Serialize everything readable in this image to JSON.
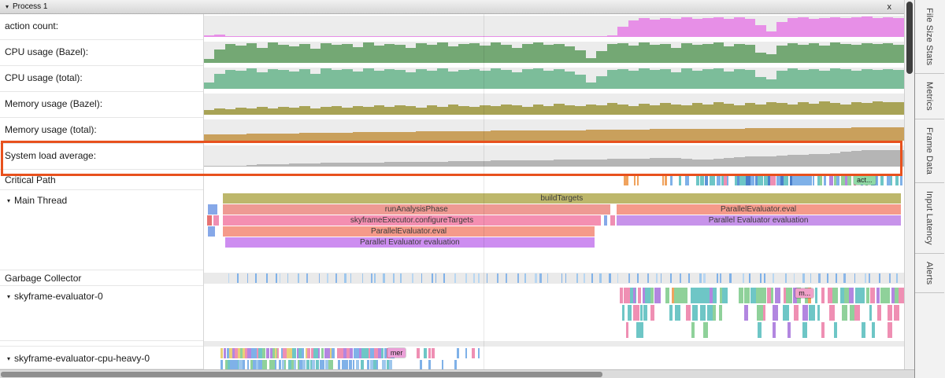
{
  "icons": {
    "collapse_arrow": "▾",
    "thread_arrow": "▾",
    "close": "x"
  },
  "window": {
    "title": "Process 1",
    "right_tabs": [
      "File Size Stats",
      "Metrics",
      "Frame Data",
      "Input Latency",
      "Alerts"
    ]
  },
  "highlight": {
    "color": "#e8511d",
    "target": "System load average:"
  },
  "gridlines": [
    0.4
  ],
  "tracks": {
    "counters": [
      {
        "label": "action count:",
        "color": "#e78fe7",
        "values": [
          0.06,
          0.1,
          0.04,
          0.02,
          0.02,
          0.03,
          0.02,
          0.02,
          0.03,
          0.02,
          0.02,
          0.03,
          0.02,
          0.02,
          0.04,
          0.02,
          0.03,
          0.02,
          0.02,
          0.03,
          0.02,
          0.02,
          0.03,
          0.04,
          0.02,
          0.02,
          0.03,
          0.02,
          0.02,
          0.03,
          0.02,
          0.04,
          0.02,
          0.03,
          0.02,
          0.02,
          0.03,
          0.02,
          0.08,
          0.5,
          0.78,
          0.88,
          0.82,
          0.9,
          0.86,
          0.92,
          0.84,
          0.9,
          0.94,
          0.87,
          0.91,
          0.85,
          0.55,
          0.25,
          0.7,
          0.88,
          0.92,
          0.86,
          0.9,
          0.94,
          0.88,
          0.92,
          0.96,
          0.9,
          0.93,
          0.9
        ]
      },
      {
        "label": "CPU usage (Bazel):",
        "color": "#74a874",
        "values": [
          0.2,
          0.62,
          0.88,
          0.8,
          0.92,
          0.7,
          0.95,
          0.85,
          0.78,
          0.9,
          0.66,
          0.93,
          0.85,
          0.9,
          0.74,
          0.95,
          0.82,
          0.9,
          0.86,
          0.7,
          0.92,
          0.84,
          0.95,
          0.76,
          0.88,
          0.92,
          0.8,
          0.95,
          0.85,
          0.72,
          0.9,
          0.95,
          0.84,
          0.9,
          0.78,
          0.6,
          0.22,
          0.55,
          0.88,
          0.92,
          0.8,
          0.95,
          0.86,
          0.9,
          0.72,
          0.94,
          0.84,
          0.9,
          0.95,
          0.78,
          0.9,
          0.86,
          0.5,
          0.4,
          0.82,
          0.94,
          0.86,
          0.92,
          0.8,
          0.95,
          0.9,
          0.84,
          0.93,
          0.88,
          0.92,
          0.85
        ]
      },
      {
        "label": "CPU usage (total):",
        "color": "#7cbd9a",
        "values": [
          0.3,
          0.7,
          0.9,
          0.85,
          0.95,
          0.78,
          0.92,
          0.88,
          0.82,
          0.94,
          0.72,
          0.95,
          0.88,
          0.92,
          0.8,
          0.96,
          0.86,
          0.92,
          0.88,
          0.76,
          0.94,
          0.86,
          0.96,
          0.8,
          0.9,
          0.94,
          0.84,
          0.96,
          0.88,
          0.78,
          0.92,
          0.96,
          0.86,
          0.92,
          0.82,
          0.65,
          0.3,
          0.6,
          0.9,
          0.94,
          0.84,
          0.96,
          0.88,
          0.92,
          0.78,
          0.95,
          0.86,
          0.92,
          0.96,
          0.82,
          0.92,
          0.88,
          0.55,
          0.45,
          0.85,
          0.95,
          0.88,
          0.94,
          0.84,
          0.96,
          0.92,
          0.86,
          0.94,
          0.9,
          0.93,
          0.88
        ]
      },
      {
        "label": "Memory usage (Bazel):",
        "color": "#a8a356",
        "values": [
          0.22,
          0.3,
          0.26,
          0.34,
          0.28,
          0.36,
          0.3,
          0.38,
          0.32,
          0.4,
          0.3,
          0.36,
          0.42,
          0.34,
          0.4,
          0.36,
          0.44,
          0.38,
          0.46,
          0.4,
          0.34,
          0.44,
          0.38,
          0.48,
          0.42,
          0.36,
          0.46,
          0.4,
          0.5,
          0.44,
          0.38,
          0.48,
          0.42,
          0.52,
          0.46,
          0.4,
          0.5,
          0.44,
          0.54,
          0.48,
          0.42,
          0.52,
          0.46,
          0.56,
          0.5,
          0.44,
          0.54,
          0.48,
          0.58,
          0.52,
          0.46,
          0.56,
          0.5,
          0.6,
          0.54,
          0.48,
          0.58,
          0.52,
          0.62,
          0.56,
          0.5,
          0.6,
          0.55,
          0.63,
          0.58,
          0.6
        ]
      },
      {
        "label": "Memory usage (total):",
        "color": "#c9a05c",
        "values": [
          0.28,
          0.29,
          0.3,
          0.31,
          0.32,
          0.33,
          0.34,
          0.34,
          0.35,
          0.36,
          0.36,
          0.37,
          0.38,
          0.38,
          0.39,
          0.4,
          0.4,
          0.41,
          0.42,
          0.42,
          0.43,
          0.44,
          0.44,
          0.45,
          0.45,
          0.46,
          0.46,
          0.47,
          0.47,
          0.48,
          0.48,
          0.49,
          0.49,
          0.5,
          0.5,
          0.5,
          0.51,
          0.51,
          0.52,
          0.52,
          0.53,
          0.53,
          0.54,
          0.54,
          0.55,
          0.55,
          0.55,
          0.56,
          0.56,
          0.57,
          0.57,
          0.58,
          0.58,
          0.58,
          0.59,
          0.59,
          0.6,
          0.6,
          0.6,
          0.61,
          0.61,
          0.62,
          0.62,
          0.62,
          0.63,
          0.63
        ]
      },
      {
        "label": "System load average:",
        "color": "#b5b5b5",
        "highlighted": true,
        "values": [
          0.02,
          0.03,
          0.04,
          0.05,
          0.07,
          0.1,
          0.12,
          0.13,
          0.14,
          0.15,
          0.16,
          0.17,
          0.17,
          0.18,
          0.19,
          0.2,
          0.2,
          0.21,
          0.22,
          0.22,
          0.23,
          0.24,
          0.24,
          0.25,
          0.26,
          0.26,
          0.27,
          0.28,
          0.28,
          0.29,
          0.3,
          0.3,
          0.31,
          0.32,
          0.33,
          0.34,
          0.34,
          0.35,
          0.36,
          0.37,
          0.38,
          0.38,
          0.39,
          0.4,
          0.41,
          0.36,
          0.33,
          0.35,
          0.38,
          0.42,
          0.45,
          0.47,
          0.48,
          0.5,
          0.52,
          0.54,
          0.56,
          0.58,
          0.6,
          0.62,
          0.72,
          0.75,
          0.76,
          0.77,
          0.78,
          0.78
        ]
      }
    ],
    "critical_path": {
      "label": "Critical Path",
      "badge": {
        "text": "act...",
        "x": 0.928,
        "bg": "#8fd9a5"
      },
      "tick_clusters": [
        {
          "f": 0.598,
          "t": 0.604,
          "n": 1,
          "w": [
            5,
            6
          ],
          "c": [
            "#f0a35e"
          ]
        },
        {
          "f": 0.612,
          "t": 0.622,
          "n": 2,
          "w": [
            2,
            4
          ],
          "c": [
            "#f0a35e",
            "#ef8fb3"
          ]
        },
        {
          "f": 0.652,
          "t": 0.668,
          "n": 3,
          "w": [
            2,
            4
          ],
          "c": [
            "#e8899f",
            "#f0a35e",
            "#7fb1e8"
          ]
        },
        {
          "f": 0.676,
          "t": 0.695,
          "n": 3,
          "w": [
            2,
            4
          ],
          "c": [
            "#7fb1e8",
            "#6ec6c6"
          ]
        },
        {
          "f": 0.7,
          "t": 0.752,
          "n": 9,
          "w": [
            2,
            5
          ],
          "c": [
            "#7fb1e8",
            "#5d94d6",
            "#6ec6c6",
            "#ef8fb3"
          ]
        },
        {
          "f": 0.756,
          "t": 0.8,
          "n": 11,
          "w": [
            3,
            8
          ],
          "c": [
            "#5d94d6",
            "#7fb1e8",
            "#4a7fc9",
            "#6ec6c6"
          ]
        },
        {
          "f": 0.802,
          "t": 0.862,
          "n": 10,
          "w": [
            3,
            9
          ],
          "c": [
            "#4a7fc9",
            "#7fb1e8",
            "#b286e0",
            "#ef8fb3",
            "#6ec6c6"
          ]
        },
        {
          "f": 0.866,
          "t": 0.93,
          "n": 11,
          "w": [
            2,
            6
          ],
          "c": [
            "#7fb1e8",
            "#6ec6c6",
            "#ef8fb3",
            "#8fd19a",
            "#b286e0"
          ]
        },
        {
          "f": 0.934,
          "t": 0.998,
          "n": 9,
          "w": [
            2,
            5
          ],
          "c": [
            "#ef8fb3",
            "#7fb1e8",
            "#b286e0",
            "#8fd19a",
            "#6ec6c6"
          ]
        }
      ]
    },
    "main_thread": {
      "label": "Main Thread",
      "slices": [
        {
          "name": "buildTargets",
          "row": 0,
          "x": 0.027,
          "w": 0.968,
          "color": "#bdb76b",
          "show_label": true
        },
        {
          "name": "",
          "row": 1,
          "x": 0.006,
          "w": 0.013,
          "color": "#86a8e8",
          "show_label": false
        },
        {
          "name": "runAnalysisPhase",
          "row": 1,
          "x": 0.027,
          "w": 0.553,
          "color": "#ee9a93",
          "show_label": true
        },
        {
          "name": "ParallelEvaluator.eval",
          "row": 1,
          "x": 0.589,
          "w": 0.406,
          "color": "#f59a8a",
          "show_label": true
        },
        {
          "name": "",
          "row": 2,
          "x": 0.004,
          "w": 0.007,
          "color": "#e57373",
          "show_label": false
        },
        {
          "name": "",
          "row": 2,
          "x": 0.014,
          "w": 0.007,
          "color": "#ef8fb3",
          "show_label": false
        },
        {
          "name": "skyframeExecutor.configureTargets",
          "row": 2,
          "x": 0.027,
          "w": 0.54,
          "color": "#f48fb1",
          "show_label": true
        },
        {
          "name": "",
          "row": 2,
          "x": 0.571,
          "w": 0.005,
          "color": "#86a8e8",
          "show_label": false
        },
        {
          "name": "",
          "row": 2,
          "x": 0.58,
          "w": 0.007,
          "color": "#ef8fb3",
          "show_label": false
        },
        {
          "name": "Parallel Evaluator evaluation",
          "row": 2,
          "x": 0.589,
          "w": 0.406,
          "color": "#c793ea",
          "show_label": true
        },
        {
          "name": "",
          "row": 3,
          "x": 0.006,
          "w": 0.01,
          "color": "#86a8e8",
          "show_label": false
        },
        {
          "name": "ParallelEvaluator.eval",
          "row": 3,
          "x": 0.027,
          "w": 0.531,
          "color": "#f59a8a",
          "show_label": true
        },
        {
          "name": "Parallel Evaluator evaluation",
          "row": 4,
          "x": 0.03,
          "w": 0.528,
          "color": "#cd8df0",
          "show_label": true
        }
      ]
    },
    "garbage_collector": {
      "label": "Garbage Collector",
      "tick_clusters": [
        {
          "f": 0.03,
          "t": 0.995,
          "n": 78,
          "w": [
            1,
            3
          ],
          "c": [
            "#9ec7ed",
            "#7fb1e8",
            "#b9d7f2",
            "#8ab6e8"
          ]
        }
      ]
    },
    "skyframe0": {
      "label": "skyframe-evaluator-0",
      "badge": {
        "text": "m...",
        "x": 0.845,
        "bg": "#f0a0c8"
      },
      "rows": [
        [
          {
            "f": 0.592,
            "t": 0.648,
            "n": 9,
            "w": [
              3,
              9
            ],
            "c": [
              "#ef8fb3",
              "#8fd19a",
              "#6ec6c6",
              "#b286e0"
            ]
          },
          {
            "f": 0.656,
            "t": 0.746,
            "n": 13,
            "w": [
              3,
              10
            ],
            "c": [
              "#8fd19a",
              "#ef8fb3",
              "#6ec6c6",
              "#f0a35e",
              "#b286e0"
            ]
          },
          {
            "f": 0.76,
            "t": 0.9,
            "n": 18,
            "w": [
              3,
              10
            ],
            "c": [
              "#ef8fb3",
              "#8fd19a",
              "#6ec6c6",
              "#b286e0",
              "#f0a35e"
            ]
          },
          {
            "f": 0.905,
            "t": 0.998,
            "n": 13,
            "w": [
              3,
              9
            ],
            "c": [
              "#ef8fb3",
              "#6ec6c6",
              "#8fd19a",
              "#b286e0"
            ]
          }
        ],
        [
          {
            "f": 0.594,
            "t": 0.64,
            "n": 6,
            "w": [
              3,
              8
            ],
            "c": [
              "#ef8fb3",
              "#6ec6c6",
              "#b286e0"
            ]
          },
          {
            "f": 0.66,
            "t": 0.742,
            "n": 8,
            "w": [
              3,
              8
            ],
            "c": [
              "#8fd19a",
              "#ef8fb3",
              "#6ec6c6"
            ]
          },
          {
            "f": 0.765,
            "t": 0.995,
            "n": 17,
            "w": [
              3,
              9
            ],
            "c": [
              "#ef8fb3",
              "#8fd19a",
              "#6ec6c6",
              "#b286e0"
            ]
          }
        ],
        [
          {
            "f": 0.598,
            "t": 0.632,
            "n": 3,
            "w": [
              3,
              6
            ],
            "c": [
              "#ef8fb3",
              "#6ec6c6"
            ]
          },
          {
            "f": 0.69,
            "t": 0.72,
            "n": 2,
            "w": [
              3,
              6
            ],
            "c": [
              "#8fd19a"
            ]
          },
          {
            "f": 0.78,
            "t": 0.99,
            "n": 9,
            "w": [
              3,
              7
            ],
            "c": [
              "#ef8fb3",
              "#6ec6c6",
              "#b286e0",
              "#8fd19a"
            ]
          }
        ]
      ]
    },
    "skyframe_cpu": {
      "label": "skyframe-evaluator-cpu-heavy-0",
      "badge": {
        "text": "mer",
        "x": 0.262,
        "bg": "#eba0d8"
      },
      "rows": [
        [
          {
            "f": 0.022,
            "t": 0.185,
            "n": 42,
            "w": [
              2,
              6
            ],
            "c": [
              "#ef8fb3",
              "#6ec6c6",
              "#7fb1e8",
              "#8fd19a",
              "#b286e0",
              "#e8d078"
            ]
          },
          {
            "f": 0.188,
            "t": 0.268,
            "n": 18,
            "w": [
              2,
              6
            ],
            "c": [
              "#ef8fb3",
              "#6ec6c6",
              "#7fb1e8",
              "#b286e0"
            ]
          },
          {
            "f": 0.3,
            "t": 0.33,
            "n": 4,
            "w": [
              2,
              5
            ],
            "c": [
              "#ef8fb3",
              "#6ec6c6"
            ]
          },
          {
            "f": 0.355,
            "t": 0.4,
            "n": 4,
            "w": [
              2,
              4
            ],
            "c": [
              "#7fb1e8",
              "#ef8fb3"
            ]
          }
        ],
        [
          {
            "f": 0.022,
            "t": 0.185,
            "n": 36,
            "w": [
              2,
              5
            ],
            "c": [
              "#6ec6c6",
              "#7fb1e8",
              "#9ec7ed",
              "#8fd19a"
            ]
          },
          {
            "f": 0.188,
            "t": 0.268,
            "n": 14,
            "w": [
              2,
              5
            ],
            "c": [
              "#6ec6c6",
              "#7fb1e8",
              "#9ec7ed"
            ]
          },
          {
            "f": 0.3,
            "t": 0.36,
            "n": 4,
            "w": [
              2,
              4
            ],
            "c": [
              "#6ec6c6",
              "#7fb1e8"
            ]
          }
        ]
      ]
    }
  }
}
